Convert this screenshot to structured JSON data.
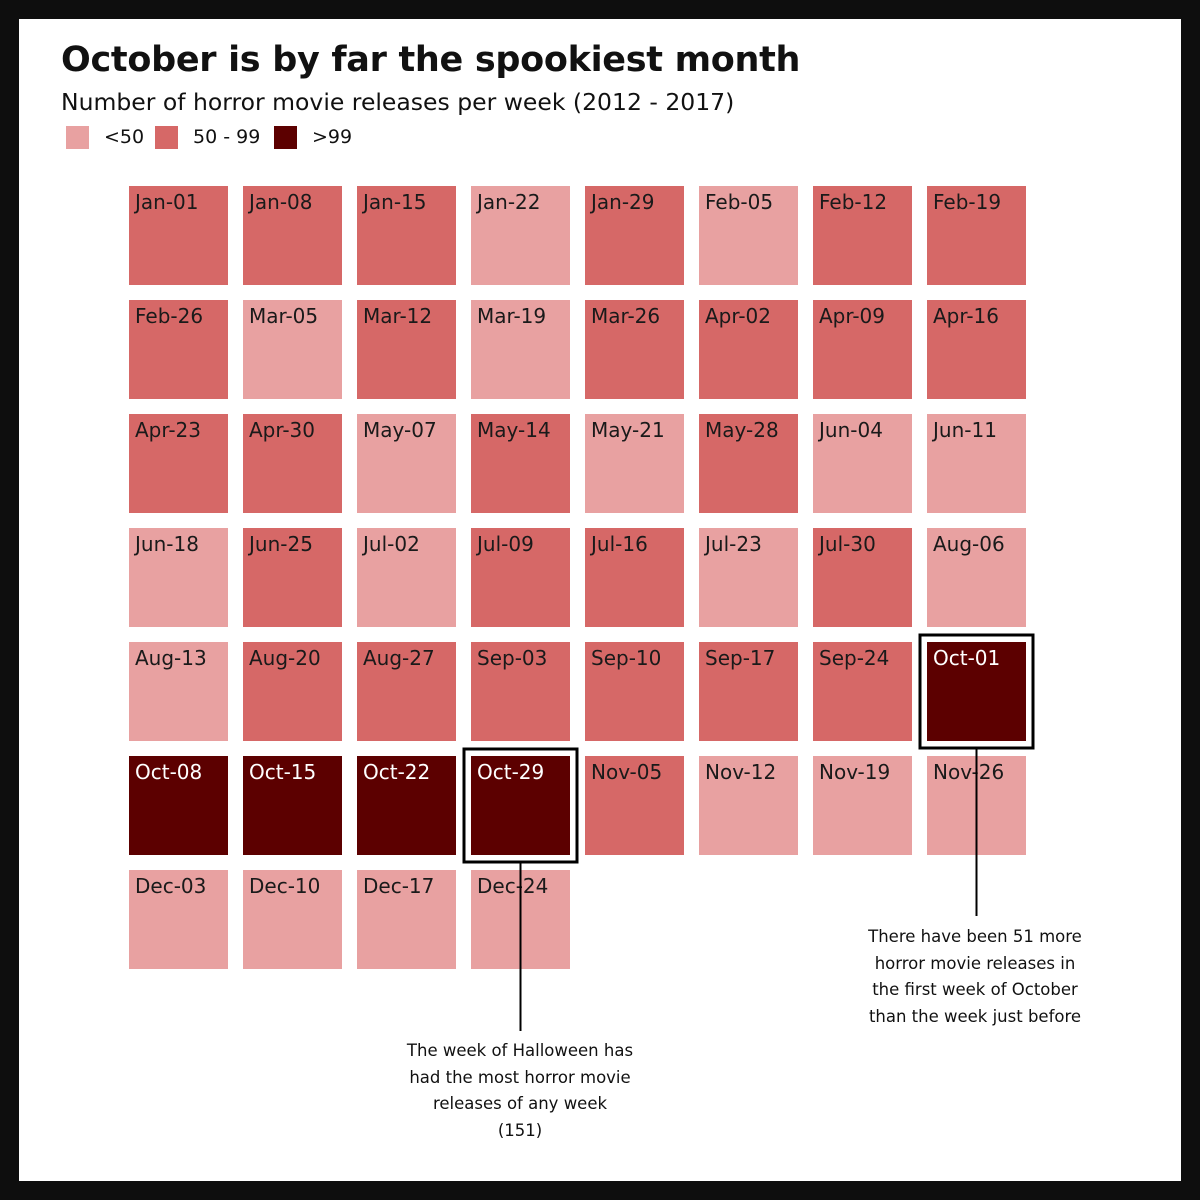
{
  "title": "October is by far the spookiest month",
  "subtitle": "Number of horror movie releases per week (2012 - 2017)",
  "colors": {
    "low": "#e8a1a1",
    "mid": "#d66867",
    "high": "#5c0000",
    "background": "#ffffff",
    "frame": "#0e0e0e",
    "highlight_border": "#000000"
  },
  "legend": [
    {
      "label": "<50",
      "color": "#e8a1a1"
    },
    {
      "label": "50 - 99",
      "color": "#d66867"
    },
    {
      "label": ">99",
      "color": "#5c0000"
    }
  ],
  "chart_data": {
    "type": "heatmap",
    "title": "October is by far the spookiest month",
    "subtitle": "Number of horror movie releases per week (2012 - 2017)",
    "layout": "calendar-grid",
    "columns": 8,
    "legend_placement": "top-left",
    "categories": [
      "<50",
      "50 - 99",
      ">99"
    ],
    "weeks": [
      {
        "label": "Jan-01",
        "category": "50 - 99"
      },
      {
        "label": "Jan-08",
        "category": "50 - 99"
      },
      {
        "label": "Jan-15",
        "category": "50 - 99"
      },
      {
        "label": "Jan-22",
        "category": "<50"
      },
      {
        "label": "Jan-29",
        "category": "50 - 99"
      },
      {
        "label": "Feb-05",
        "category": "<50"
      },
      {
        "label": "Feb-12",
        "category": "50 - 99"
      },
      {
        "label": "Feb-19",
        "category": "50 - 99"
      },
      {
        "label": "Feb-26",
        "category": "50 - 99"
      },
      {
        "label": "Mar-05",
        "category": "<50"
      },
      {
        "label": "Mar-12",
        "category": "50 - 99"
      },
      {
        "label": "Mar-19",
        "category": "<50"
      },
      {
        "label": "Mar-26",
        "category": "50 - 99"
      },
      {
        "label": "Apr-02",
        "category": "50 - 99"
      },
      {
        "label": "Apr-09",
        "category": "50 - 99"
      },
      {
        "label": "Apr-16",
        "category": "50 - 99"
      },
      {
        "label": "Apr-23",
        "category": "50 - 99"
      },
      {
        "label": "Apr-30",
        "category": "50 - 99"
      },
      {
        "label": "May-07",
        "category": "<50"
      },
      {
        "label": "May-14",
        "category": "50 - 99"
      },
      {
        "label": "May-21",
        "category": "<50"
      },
      {
        "label": "May-28",
        "category": "50 - 99"
      },
      {
        "label": "Jun-04",
        "category": "<50"
      },
      {
        "label": "Jun-11",
        "category": "<50"
      },
      {
        "label": "Jun-18",
        "category": "<50"
      },
      {
        "label": "Jun-25",
        "category": "50 - 99"
      },
      {
        "label": "Jul-02",
        "category": "<50"
      },
      {
        "label": "Jul-09",
        "category": "50 - 99"
      },
      {
        "label": "Jul-16",
        "category": "50 - 99"
      },
      {
        "label": "Jul-23",
        "category": "<50"
      },
      {
        "label": "Jul-30",
        "category": "50 - 99"
      },
      {
        "label": "Aug-06",
        "category": "<50"
      },
      {
        "label": "Aug-13",
        "category": "<50"
      },
      {
        "label": "Aug-20",
        "category": "50 - 99"
      },
      {
        "label": "Aug-27",
        "category": "50 - 99"
      },
      {
        "label": "Sep-03",
        "category": "50 - 99"
      },
      {
        "label": "Sep-10",
        "category": "50 - 99"
      },
      {
        "label": "Sep-17",
        "category": "50 - 99"
      },
      {
        "label": "Sep-24",
        "category": "50 - 99"
      },
      {
        "label": "Oct-01",
        "category": ">99",
        "highlight": true
      },
      {
        "label": "Oct-08",
        "category": ">99"
      },
      {
        "label": "Oct-15",
        "category": ">99"
      },
      {
        "label": "Oct-22",
        "category": ">99"
      },
      {
        "label": "Oct-29",
        "category": ">99",
        "highlight": true
      },
      {
        "label": "Nov-05",
        "category": "50 - 99"
      },
      {
        "label": "Nov-12",
        "category": "<50"
      },
      {
        "label": "Nov-19",
        "category": "<50"
      },
      {
        "label": "Nov-26",
        "category": "<50"
      },
      {
        "label": "Dec-03",
        "category": "<50"
      },
      {
        "label": "Dec-10",
        "category": "<50"
      },
      {
        "label": "Dec-17",
        "category": "<50"
      },
      {
        "label": "Dec-24",
        "category": "<50"
      }
    ],
    "annotations": [
      {
        "target": "Oct-29",
        "text": "The week of Halloween has had the most horror movie releases of any week (151)"
      },
      {
        "target": "Oct-01",
        "text": "There have been 51 more horror movie releases in the first week of October than the week just before"
      }
    ]
  },
  "annotations": {
    "halloween": {
      "line1": "The week of Halloween has",
      "line2": "had the most horror movie",
      "line3": "releases of any week",
      "line4": "(151)"
    },
    "october_first": {
      "line1": "There have been 51 more",
      "line2": "horror movie releases in",
      "line3": "the first week of October",
      "line4": "than the week just before"
    }
  }
}
